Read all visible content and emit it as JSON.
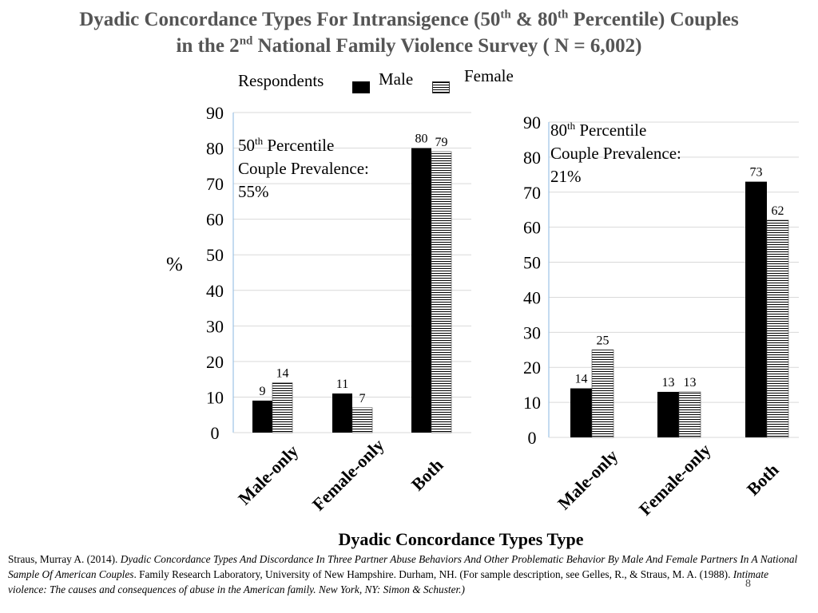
{
  "title": {
    "line1_a": "Dyadic Concordance Types For Intransigence (50",
    "line1_sup1": "th",
    "line1_b": " & 80",
    "line1_sup2": "th",
    "line1_c": " Percentile) Couples",
    "line2_a": "in the 2",
    "line2_sup": "nd",
    "line2_b": " National Family Violence Survey ( N = 6,002)"
  },
  "legend": {
    "respondents": "Respondents",
    "male": "Male",
    "female": "Female"
  },
  "annotations": {
    "left_num": "50",
    "left_sup": "th",
    "left_l1": " Percentile",
    "left_l2": "Couple Prevalence:",
    "left_l3": "55%",
    "right_num": "80",
    "right_sup": "th",
    "right_l1": " Percentile",
    "right_l2": "Couple Prevalence:",
    "right_l3": "21%"
  },
  "y_label": "%",
  "x_label": "Dyadic Concordance Types Type",
  "citation": {
    "p1": "Straus, Murray A. (2014). ",
    "p2": "Dyadic Concordance Types And Discordance In Three Partner Abuse Behaviors And Other Problematic Behavior By Male And Female Partners  In A National Sample Of  American Couples",
    "p3": ". Family Research Laboratory, University of New Hampshire. Durham, NH. (For sample description, see Gelles, R., & Straus, M. A. (1988). ",
    "p4": "Intimate violence: The causes and consequences of abuse in the American family. New York, NY: Simon & Schuster.)"
  },
  "slide_number": "8",
  "colors": {
    "male": "#000000",
    "female_stripe": "#000000",
    "axis": "#9dc3e6",
    "grid": "#d9d9d9",
    "title": "#555555"
  },
  "chart_data": [
    {
      "type": "bar",
      "categories": [
        "Male-only",
        "Female-only",
        "Both"
      ],
      "series": [
        {
          "name": "Male",
          "values": [
            9,
            11,
            80
          ]
        },
        {
          "name": "Female",
          "values": [
            14,
            7,
            79
          ]
        }
      ],
      "ylim": [
        0,
        90
      ],
      "yticks": [
        0,
        10,
        20,
        30,
        40,
        50,
        60,
        70,
        80,
        90
      ],
      "ylabel": "%",
      "grid": true
    },
    {
      "type": "bar",
      "categories": [
        "Male-only",
        "Female-only",
        "Both"
      ],
      "series": [
        {
          "name": "Male",
          "values": [
            14,
            13,
            73
          ]
        },
        {
          "name": "Female",
          "values": [
            25,
            13,
            62
          ]
        }
      ],
      "ylim": [
        0,
        90
      ],
      "yticks": [
        0,
        10,
        20,
        30,
        40,
        50,
        60,
        70,
        80,
        90
      ],
      "grid": true
    }
  ]
}
